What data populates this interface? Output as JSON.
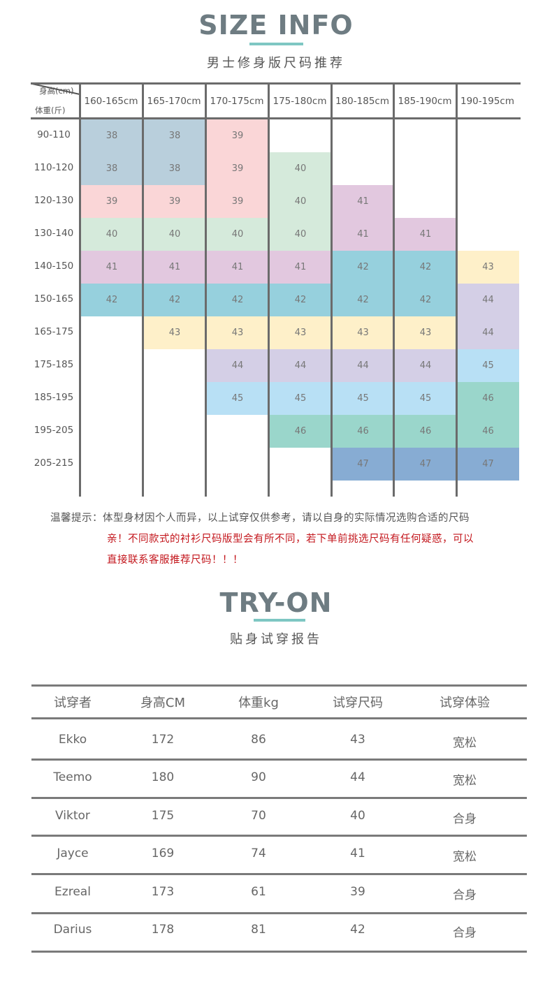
{
  "size_info": {
    "title": "SIZE INFO",
    "subtitle": "男士修身版尺码推荐",
    "accent_color": "#7ec7c3",
    "corner_top_label": "身高(cm)",
    "corner_bottom_label": "体重(斤)",
    "height_columns": [
      "160-165cm",
      "165-170cm",
      "170-175cm",
      "175-180cm",
      "180-185cm",
      "185-190cm",
      "190-195cm"
    ],
    "weight_rows": [
      "90-110",
      "110-120",
      "120-130",
      "130-140",
      "140-150",
      "150-165",
      "165-175",
      "175-185",
      "185-195",
      "195-205",
      "205-215"
    ],
    "size_colors": {
      "38": "#b9cfdc",
      "39": "#fad6d7",
      "40": "#d5eadb",
      "41": "#e2c8df",
      "42": "#96d0dd",
      "43": "#fef0c9",
      "44": "#d4cfe6",
      "45": "#b8e0f5",
      "46": "#9ad6cb",
      "47": "#87acd3"
    },
    "grid": [
      [
        "38",
        "38",
        "39",
        "",
        "",
        "",
        ""
      ],
      [
        "38",
        "38",
        "39",
        "40",
        "",
        "",
        ""
      ],
      [
        "39",
        "39",
        "39",
        "40",
        "41",
        "",
        ""
      ],
      [
        "40",
        "40",
        "40",
        "40",
        "41",
        "41",
        ""
      ],
      [
        "41",
        "41",
        "41",
        "41",
        "42",
        "42",
        "43"
      ],
      [
        "42",
        "42",
        "42",
        "42",
        "42",
        "42",
        "44"
      ],
      [
        "",
        "43",
        "43",
        "43",
        "43",
        "43",
        "44"
      ],
      [
        "",
        "",
        "44",
        "44",
        "44",
        "44",
        "45"
      ],
      [
        "",
        "",
        "45",
        "45",
        "45",
        "45",
        "46"
      ],
      [
        "",
        "",
        "",
        "46",
        "46",
        "46",
        "46"
      ],
      [
        "",
        "",
        "",
        "",
        "47",
        "47",
        "47"
      ]
    ]
  },
  "notes": {
    "line1": "温馨提示：体型身材因个人而异，以上试穿仅供参考，请以自身的实际情况选购合适的尺码",
    "line2": "亲！不同款式的衬衫尺码版型会有所不同，若下单前挑选尺码有任何疑惑，可以",
    "line3": "直接联系客服推荐尺码！！！",
    "warning_color": "#c3161c"
  },
  "try_on": {
    "title": "TRY-ON",
    "subtitle": "贴身试穿报告",
    "headers": [
      "试穿者",
      "身高CM",
      "体重kg",
      "试穿尺码",
      "试穿体验"
    ],
    "rows": [
      [
        "Ekko",
        "172",
        "86",
        "43",
        "宽松"
      ],
      [
        "Teemo",
        "180",
        "90",
        "44",
        "宽松"
      ],
      [
        "Viktor",
        "175",
        "70",
        "40",
        "合身"
      ],
      [
        "Jayce",
        "169",
        "74",
        "41",
        "宽松"
      ],
      [
        "Ezreal",
        "173",
        "61",
        "39",
        "合身"
      ],
      [
        "Darius",
        "178",
        "81",
        "42",
        "合身"
      ]
    ]
  }
}
